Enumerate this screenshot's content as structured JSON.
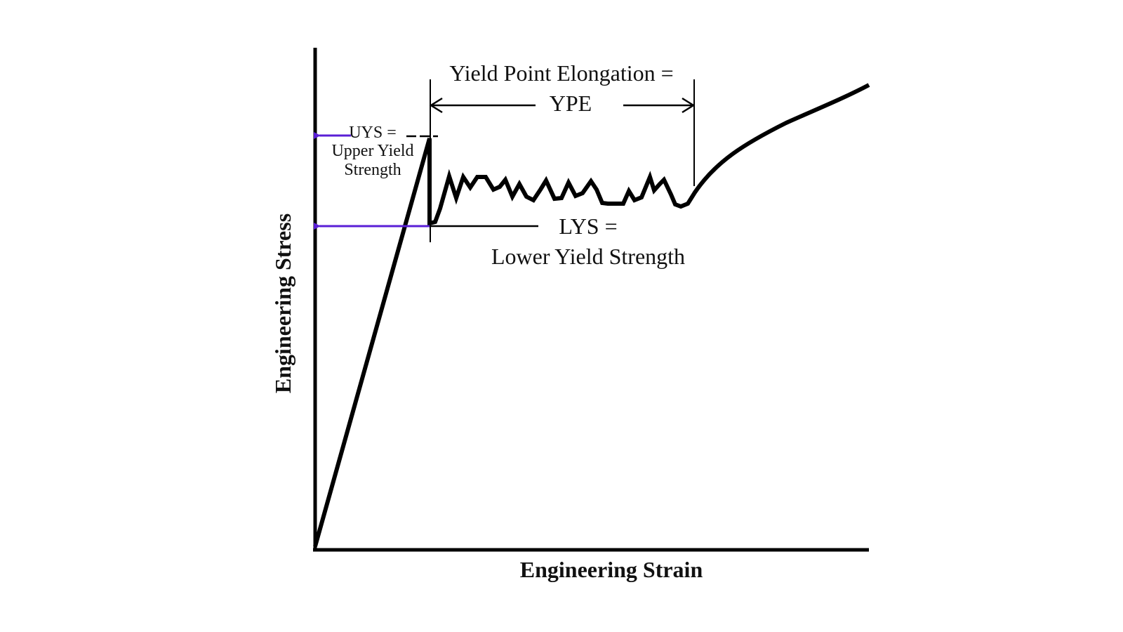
{
  "diagram": {
    "x_axis_label": "Engineering Strain",
    "y_axis_label": "Engineering Stress",
    "ype_label_line1": "Yield Point Elongation =",
    "ype_label_line2": "YPE",
    "uys_label_line1": "UYS =",
    "uys_label_line2": "Upper Yield",
    "uys_label_line3": "Strength",
    "lys_label_line1": "LYS =",
    "lys_label_line2": "Lower Yield Strength",
    "colors": {
      "curve": "#000000",
      "axes": "#000000",
      "arrow": "#5a1fd6"
    }
  }
}
